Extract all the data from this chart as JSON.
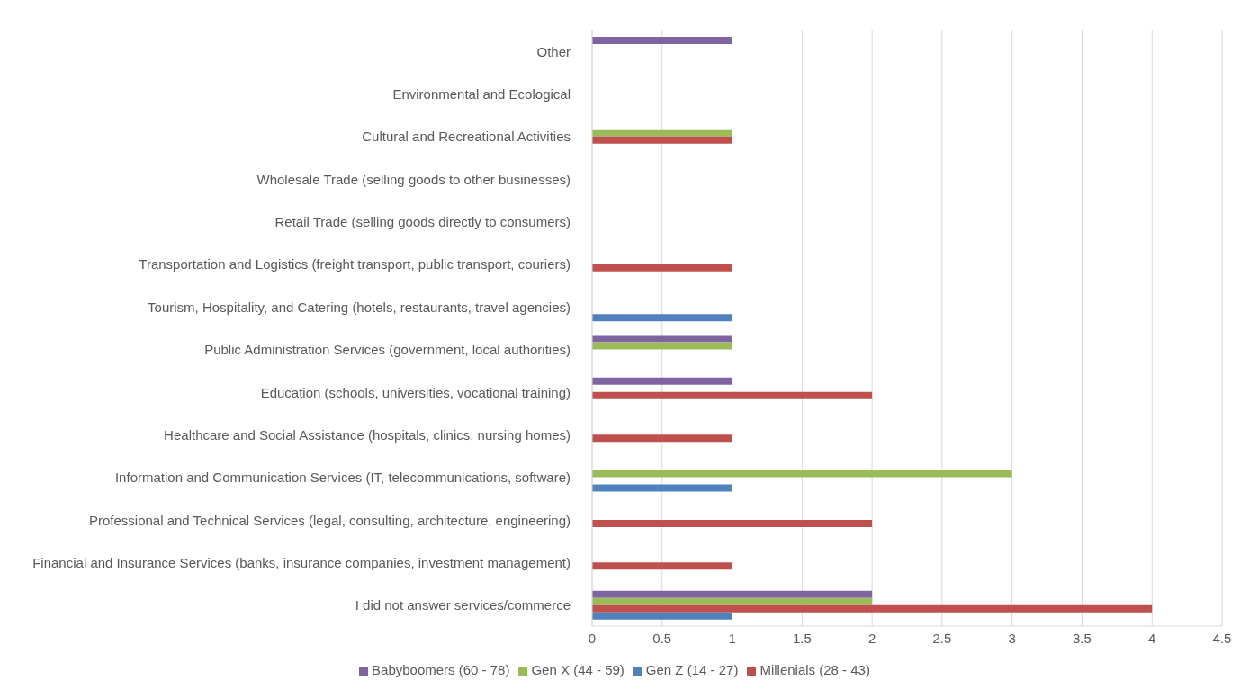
{
  "chart_data": {
    "type": "bar",
    "orientation": "horizontal",
    "categories": [
      "Other",
      "Environmental and Ecological",
      "Cultural and Recreational Activities",
      "Wholesale Trade (selling goods to other businesses)",
      "Retail Trade (selling goods directly to consumers)",
      "Transportation and Logistics (freight transport, public transport, couriers)",
      "Tourism, Hospitality, and Catering (hotels, restaurants, travel agencies)",
      "Public Administration Services (government, local authorities)",
      "Education (schools, universities, vocational training)",
      "Healthcare and Social Assistance (hospitals, clinics, nursing homes)",
      "Information and Communication Services (IT, telecommunications, software)",
      "Professional and Technical Services (legal, consulting, architecture, engineering)",
      "Financial and Insurance Services (banks, insurance companies, investment management)",
      "I did not answer services/commerce"
    ],
    "series": [
      {
        "name": "Babyboomers (60 - 78)",
        "color": "#8064a2",
        "values": [
          1,
          null,
          null,
          null,
          null,
          null,
          null,
          1,
          1,
          null,
          null,
          null,
          null,
          2
        ]
      },
      {
        "name": "Gen X (44 - 59)",
        "color": "#9bbb59",
        "values": [
          null,
          null,
          1,
          null,
          null,
          null,
          null,
          1,
          null,
          null,
          3,
          null,
          null,
          2
        ]
      },
      {
        "name": "Millenials (28 - 43)",
        "color": "#c0504d",
        "values": [
          null,
          null,
          1,
          null,
          null,
          1,
          null,
          null,
          2,
          1,
          null,
          2,
          1,
          4
        ]
      },
      {
        "name": "Gen Z (14 - 27)",
        "color": "#4f81bd",
        "values": [
          null,
          null,
          null,
          null,
          null,
          null,
          1,
          null,
          null,
          null,
          1,
          null,
          null,
          1
        ]
      }
    ],
    "xlim": [
      0,
      4.5
    ],
    "xticks": [
      0,
      0.5,
      1,
      1.5,
      2,
      2.5,
      3,
      3.5,
      4,
      4.5
    ],
    "grid": "x",
    "legend": "bottom"
  }
}
